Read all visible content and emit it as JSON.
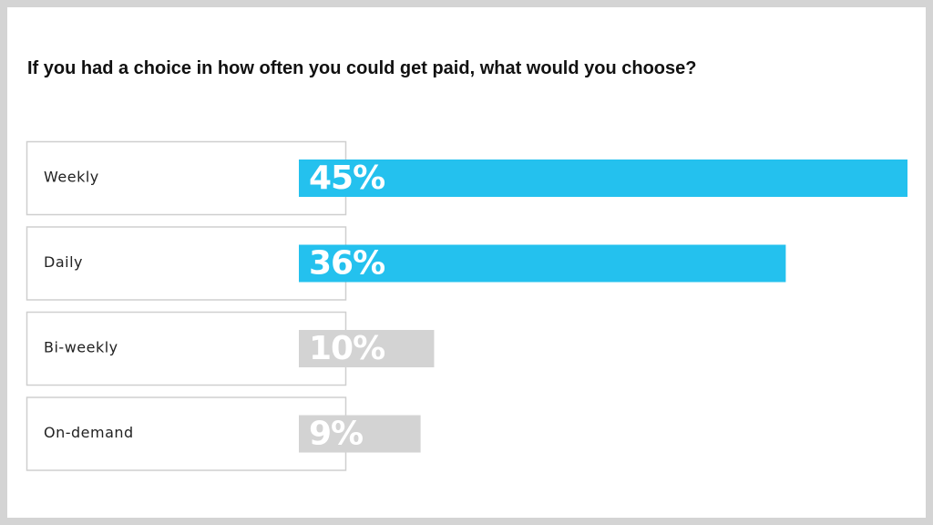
{
  "chart_data": {
    "type": "bar",
    "title": "If you had a choice in how often you could get paid, what would you choose?",
    "categories": [
      "Weekly",
      "Daily",
      "Bi-weekly",
      "On-demand"
    ],
    "values": [
      45,
      36,
      10,
      9
    ],
    "value_labels": [
      "45%",
      "36%",
      "10%",
      "9%"
    ],
    "colors": [
      "#24c1ee",
      "#24c1ee",
      "#d3d3d3",
      "#d3d3d3"
    ]
  }
}
